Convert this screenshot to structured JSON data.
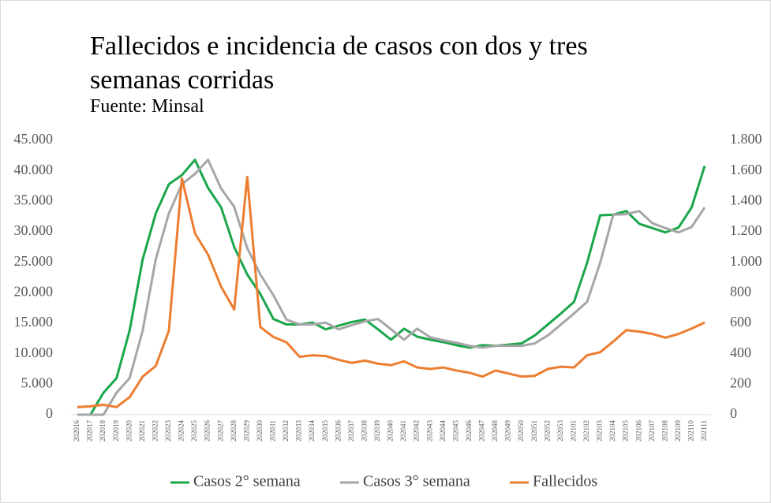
{
  "chart_data": {
    "type": "line",
    "title": "Fallecidos e incidencia de casos con dos y tres semanas corridas",
    "subtitle": "Fuente: Minsal",
    "categories": [
      "202016",
      "202017",
      "202018",
      "202019",
      "202020",
      "202021",
      "202022",
      "202023",
      "202024",
      "202025",
      "202026",
      "202027",
      "202028",
      "202029",
      "202030",
      "202031",
      "202032",
      "202033",
      "202034",
      "202035",
      "202036",
      "202037",
      "202038",
      "202039",
      "202040",
      "202041",
      "202042",
      "202043",
      "202044",
      "202045",
      "202046",
      "202047",
      "202048",
      "202049",
      "202050",
      "202051",
      "202052",
      "202053",
      "202101",
      "202102",
      "202103",
      "202104",
      "202105",
      "202106",
      "202107",
      "202108",
      "202109",
      "202110",
      "202111"
    ],
    "series": [
      {
        "name": "Casos 2° semana",
        "color": "#1aa64a",
        "values": [
          null,
          0,
          3600,
          6000,
          13800,
          25500,
          33000,
          37800,
          39300,
          41800,
          37200,
          34000,
          27500,
          23000,
          19800,
          15700,
          14800,
          14800,
          15100,
          14000,
          14600,
          15200,
          15600,
          14000,
          12300,
          14100,
          12800,
          12300,
          11900,
          11400,
          11000,
          11400,
          11300,
          11500,
          11700,
          13000,
          14800,
          16600,
          18500,
          24900,
          32700,
          32800,
          33400,
          31300,
          30600,
          29900,
          30700,
          34000,
          40800
        ]
      },
      {
        "name": "Casos 3° semana",
        "color": "#a6a6a6",
        "values": [
          0,
          0,
          0,
          3600,
          6000,
          13800,
          25500,
          33000,
          37800,
          39500,
          41800,
          37100,
          34100,
          27300,
          23000,
          19600,
          15600,
          14800,
          14800,
          15100,
          14000,
          14700,
          15300,
          15700,
          14000,
          12300,
          14100,
          12700,
          12200,
          11800,
          11300,
          11000,
          11300,
          11300,
          11300,
          11700,
          13000,
          14800,
          16600,
          18500,
          24900,
          32800,
          32900,
          33400,
          31400,
          30600,
          29900,
          30800,
          34000
        ]
      },
      {
        "name": "Fallecidos",
        "color": "#ed7d31",
        "axis": "y2",
        "values": [
          50,
          55,
          65,
          50,
          115,
          250,
          320,
          550,
          1550,
          1190,
          1050,
          840,
          690,
          1560,
          575,
          510,
          475,
          380,
          390,
          385,
          360,
          340,
          355,
          335,
          325,
          350,
          310,
          300,
          310,
          290,
          275,
          250,
          290,
          270,
          250,
          255,
          300,
          315,
          310,
          390,
          410,
          480,
          555,
          545,
          530,
          505,
          530,
          565,
          605
        ]
      }
    ],
    "ylim": [
      0,
      45000
    ],
    "yticks": [
      0,
      {
        "value": 5000,
        "label": "5.000"
      },
      {
        "value": 10000,
        "label": "10.000"
      },
      {
        "value": 15000,
        "label": "15.000"
      },
      {
        "value": 20000,
        "label": "20.000"
      },
      {
        "value": 25000,
        "label": "25.000"
      },
      {
        "value": 30000,
        "label": "30.000"
      },
      {
        "value": 35000,
        "label": "35.000"
      },
      {
        "value": 40000,
        "label": "40.000"
      },
      {
        "value": 45000,
        "label": "45.000"
      }
    ],
    "y2lim": [
      0,
      1800
    ],
    "y2ticks": [
      0,
      200,
      400,
      600,
      800,
      {
        "value": 1000,
        "label": "1.000"
      },
      {
        "value": 1200,
        "label": "1.200"
      },
      {
        "value": 1400,
        "label": "1.400"
      },
      {
        "value": 1600,
        "label": "1.600"
      },
      {
        "value": 1800,
        "label": "1.800"
      }
    ],
    "grid": false,
    "legend": "bottom"
  }
}
